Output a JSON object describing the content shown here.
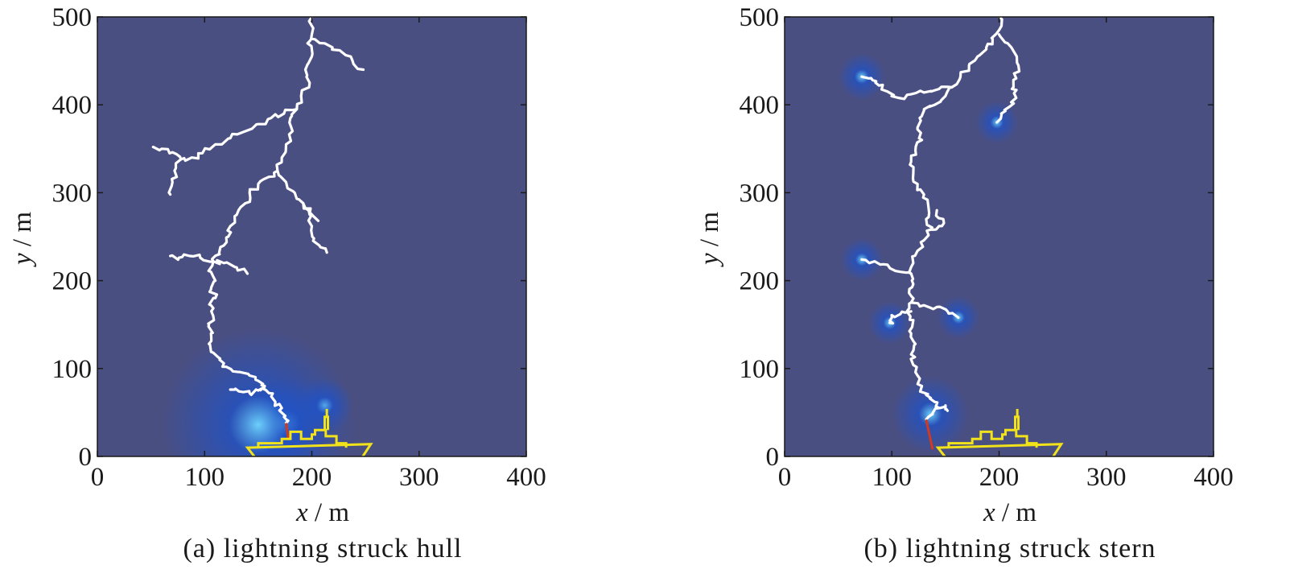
{
  "panels": [
    {
      "caption": "(a) lightning struck hull",
      "xlabel": {
        "var": "x",
        "unit": " / m"
      },
      "ylabel": {
        "var": "y",
        "unit": " / m"
      },
      "xlim": [
        0,
        400
      ],
      "ylim": [
        0,
        500
      ],
      "xticks": [
        0,
        100,
        200,
        300,
        400
      ],
      "yticks": [
        0,
        100,
        200,
        300,
        400,
        500
      ],
      "background_color": "#4a4f82",
      "field_glow_color": "#1f52c8",
      "leader_color": "#ffffff",
      "strike_color": "#d23a1e",
      "ship_color": "#f2e21a",
      "ship_x_offset": 0,
      "leader_paths": [
        [
          [
            200,
            500
          ],
          [
            200,
            480
          ],
          [
            196,
            470
          ],
          [
            200,
            455
          ],
          [
            194,
            440
          ],
          [
            198,
            425
          ],
          [
            190,
            410
          ],
          [
            186,
            395
          ],
          [
            180,
            385
          ],
          [
            182,
            370
          ],
          [
            176,
            355
          ],
          [
            172,
            340
          ],
          [
            168,
            325
          ],
          [
            160,
            318
          ],
          [
            150,
            310
          ],
          [
            142,
            300
          ],
          [
            138,
            288
          ],
          [
            130,
            275
          ],
          [
            124,
            262
          ],
          [
            122,
            250
          ],
          [
            118,
            240
          ],
          [
            114,
            230
          ],
          [
            108,
            222
          ],
          [
            106,
            210
          ],
          [
            110,
            200
          ],
          [
            106,
            190
          ],
          [
            110,
            180
          ],
          [
            106,
            172
          ],
          [
            108,
            160
          ],
          [
            104,
            150
          ],
          [
            106,
            140
          ],
          [
            104,
            128
          ],
          [
            108,
            118
          ],
          [
            114,
            110
          ],
          [
            120,
            102
          ],
          [
            132,
            96
          ],
          [
            142,
            92
          ],
          [
            150,
            86
          ],
          [
            156,
            80
          ],
          [
            160,
            72
          ],
          [
            166,
            62
          ],
          [
            172,
            55
          ],
          [
            174,
            45
          ],
          [
            176,
            38
          ]
        ],
        [
          [
            200,
            475
          ],
          [
            212,
            470
          ],
          [
            226,
            462
          ],
          [
            238,
            450
          ],
          [
            248,
            440
          ]
        ],
        [
          [
            186,
            395
          ],
          [
            174,
            390
          ],
          [
            162,
            385
          ],
          [
            150,
            378
          ],
          [
            138,
            370
          ],
          [
            124,
            362
          ],
          [
            110,
            355
          ],
          [
            98,
            345
          ],
          [
            88,
            340
          ],
          [
            78,
            338
          ]
        ],
        [
          [
            78,
            338
          ],
          [
            70,
            346
          ],
          [
            60,
            350
          ],
          [
            52,
            352
          ]
        ],
        [
          [
            78,
            338
          ],
          [
            72,
            325
          ],
          [
            70,
            312
          ],
          [
            68,
            298
          ]
        ],
        [
          [
            168,
            325
          ],
          [
            176,
            312
          ],
          [
            184,
            300
          ],
          [
            192,
            288
          ],
          [
            198,
            276
          ],
          [
            206,
            268
          ]
        ],
        [
          [
            192,
            288
          ],
          [
            198,
            275
          ],
          [
            200,
            262
          ],
          [
            202,
            248
          ],
          [
            208,
            238
          ],
          [
            214,
            232
          ]
        ],
        [
          [
            108,
            222
          ],
          [
            96,
            226
          ],
          [
            86,
            228
          ],
          [
            76,
            226
          ],
          [
            68,
            228
          ]
        ],
        [
          [
            108,
            222
          ],
          [
            118,
            220
          ],
          [
            130,
            215
          ],
          [
            140,
            208
          ]
        ],
        [
          [
            156,
            80
          ],
          [
            150,
            75
          ],
          [
            142,
            72
          ],
          [
            132,
            74
          ],
          [
            124,
            76
          ]
        ]
      ],
      "strike": [
        [
          176,
          38
        ],
        [
          178,
          20
        ]
      ],
      "glows": [
        [
          176,
          38,
          42
        ],
        [
          212,
          58,
          26
        ],
        [
          150,
          36,
          90
        ]
      ]
    },
    {
      "caption": "(b) lightning struck stern",
      "xlabel": {
        "var": "x",
        "unit": " / m"
      },
      "ylabel": {
        "var": "y",
        "unit": " / m"
      },
      "xlim": [
        0,
        400
      ],
      "ylim": [
        0,
        500
      ],
      "xticks": [
        0,
        100,
        200,
        300,
        400
      ],
      "yticks": [
        0,
        100,
        200,
        300,
        400,
        500
      ],
      "background_color": "#4a4f82",
      "field_glow_color": "#1f52c8",
      "leader_color": "#ffffff",
      "strike_color": "#d23a1e",
      "ship_color": "#f2e21a",
      "ship_x_offset": 3,
      "leader_paths": [
        [
          [
            200,
            500
          ],
          [
            200,
            485
          ],
          [
            194,
            475
          ],
          [
            188,
            465
          ],
          [
            180,
            455
          ],
          [
            172,
            445
          ],
          [
            164,
            432
          ],
          [
            156,
            420
          ],
          [
            150,
            410
          ],
          [
            140,
            400
          ],
          [
            130,
            395
          ],
          [
            126,
            385
          ],
          [
            124,
            372
          ],
          [
            128,
            360
          ],
          [
            122,
            348
          ],
          [
            118,
            335
          ],
          [
            120,
            322
          ],
          [
            124,
            310
          ],
          [
            130,
            298
          ],
          [
            134,
            285
          ],
          [
            132,
            270
          ],
          [
            136,
            258
          ],
          [
            130,
            246
          ],
          [
            124,
            234
          ],
          [
            120,
            220
          ],
          [
            118,
            208
          ],
          [
            120,
            196
          ],
          [
            116,
            186
          ],
          [
            118,
            175
          ],
          [
            114,
            165
          ],
          [
            120,
            155
          ],
          [
            118,
            140
          ],
          [
            122,
            128
          ],
          [
            118,
            116
          ],
          [
            120,
            104
          ],
          [
            124,
            92
          ],
          [
            128,
            80
          ],
          [
            132,
            70
          ],
          [
            140,
            62
          ],
          [
            144,
            55
          ],
          [
            138,
            48
          ],
          [
            132,
            42
          ]
        ],
        [
          [
            200,
            480
          ],
          [
            208,
            470
          ],
          [
            214,
            460
          ],
          [
            218,
            445
          ],
          [
            216,
            430
          ],
          [
            212,
            418
          ],
          [
            216,
            408
          ],
          [
            210,
            398
          ],
          [
            202,
            390
          ],
          [
            198,
            380
          ]
        ],
        [
          [
            156,
            420
          ],
          [
            144,
            418
          ],
          [
            130,
            414
          ],
          [
            118,
            412
          ],
          [
            106,
            408
          ],
          [
            96,
            415
          ],
          [
            88,
            422
          ],
          [
            82,
            428
          ],
          [
            72,
            432
          ]
        ],
        [
          [
            118,
            208
          ],
          [
            108,
            210
          ],
          [
            96,
            218
          ],
          [
            84,
            222
          ],
          [
            72,
            224
          ]
        ],
        [
          [
            118,
            175
          ],
          [
            130,
            172
          ],
          [
            142,
            170
          ],
          [
            152,
            165
          ],
          [
            162,
            158
          ]
        ],
        [
          [
            118,
            165
          ],
          [
            108,
            162
          ],
          [
            100,
            158
          ],
          [
            98,
            152
          ]
        ],
        [
          [
            144,
            55
          ],
          [
            150,
            58
          ],
          [
            152,
            52
          ]
        ],
        [
          [
            136,
            258
          ],
          [
            144,
            262
          ],
          [
            148,
            270
          ],
          [
            142,
            280
          ]
        ]
      ],
      "strike": [
        [
          132,
          42
        ],
        [
          138,
          8
        ]
      ],
      "glows": [
        [
          136,
          48,
          36
        ],
        [
          72,
          432,
          22
        ],
        [
          72,
          224,
          20
        ],
        [
          98,
          152,
          20
        ],
        [
          162,
          158,
          20
        ],
        [
          198,
          380,
          20
        ]
      ]
    }
  ]
}
